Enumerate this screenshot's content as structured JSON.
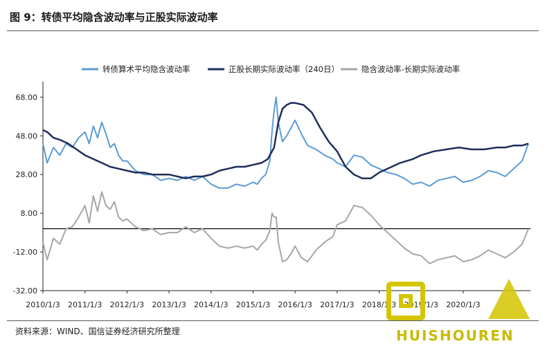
{
  "figure": {
    "title": "图 9：转债平均隐含波动率与正股实际波动率",
    "source": "资料来源：WIND、国信证券经济研究所整理"
  },
  "watermark": {
    "text": "HUISHOUREN"
  },
  "colors": {
    "implied": "#5b9bd5",
    "realized": "#1f2d5a",
    "spread": "#a6a6a6",
    "zero_line": "#000000",
    "axis": "#222222"
  },
  "chart_data": {
    "type": "line",
    "title": "",
    "xlabel": "",
    "ylabel": "",
    "ylim": [
      -32,
      76
    ],
    "y_ticks": [
      "68.00",
      "48.00",
      "28.00",
      "8.00",
      "-12.00",
      "-32.00"
    ],
    "y_tick_values": [
      68,
      48,
      28,
      8,
      -12,
      -32
    ],
    "x_ticks": [
      "2010/1/3",
      "2011/1/3",
      "2012/1/3",
      "2013/1/3",
      "2014/1/3",
      "2015/1/3",
      "2016/1/3",
      "2017/1/3",
      "2018/1/3",
      "2019/1/3",
      "2020/1/3"
    ],
    "x_tick_values": [
      2010,
      2011,
      2012,
      2013,
      2014,
      2015,
      2016,
      2017,
      2018,
      2019,
      2020
    ],
    "xlim": [
      2010,
      2021.6
    ],
    "legend_position": "top",
    "series": [
      {
        "name": "转债算术平均隐含波动率",
        "x": [
          2010,
          2010.1,
          2010.25,
          2010.4,
          2010.55,
          2010.7,
          2010.85,
          2011,
          2011.1,
          2011.2,
          2011.3,
          2011.4,
          2011.5,
          2011.6,
          2011.7,
          2011.8,
          2011.9,
          2012,
          2012.2,
          2012.4,
          2012.6,
          2012.8,
          2013,
          2013.2,
          2013.4,
          2013.6,
          2013.8,
          2014,
          2014.2,
          2014.4,
          2014.6,
          2014.8,
          2015,
          2015.1,
          2015.2,
          2015.3,
          2015.4,
          2015.45,
          2015.5,
          2015.55,
          2015.6,
          2015.7,
          2015.8,
          2015.9,
          2016,
          2016.15,
          2016.3,
          2016.5,
          2016.7,
          2016.9,
          2017,
          2017.2,
          2017.4,
          2017.6,
          2017.8,
          2018,
          2018.2,
          2018.4,
          2018.6,
          2018.8,
          2019,
          2019.2,
          2019.4,
          2019.6,
          2019.8,
          2020,
          2020.2,
          2020.4,
          2020.6,
          2020.8,
          2021,
          2021.2,
          2021.4,
          2021.55
        ],
        "values": [
          44,
          34,
          42,
          38,
          44,
          42,
          47,
          50,
          44,
          53,
          47,
          55,
          49,
          42,
          44,
          38,
          35,
          35,
          30,
          28,
          28,
          25,
          26,
          25,
          27,
          25,
          27,
          23,
          21,
          21,
          23,
          22,
          24,
          23,
          26,
          28,
          35,
          50,
          61,
          68,
          55,
          45,
          48,
          52,
          56,
          49,
          43,
          41,
          38,
          36,
          34,
          32,
          38,
          37,
          33,
          31,
          29,
          28,
          26,
          23,
          24,
          22,
          25,
          26,
          27,
          24,
          25,
          27,
          30,
          29,
          27,
          31,
          35,
          44
        ]
      },
      {
        "name": "正股长期实际波动率（240日）",
        "x": [
          2010,
          2010.1,
          2010.25,
          2010.4,
          2010.6,
          2010.8,
          2011,
          2011.2,
          2011.4,
          2011.6,
          2011.8,
          2012,
          2012.2,
          2012.4,
          2012.6,
          2012.8,
          2013,
          2013.2,
          2013.4,
          2013.6,
          2013.8,
          2014,
          2014.2,
          2014.4,
          2014.6,
          2014.8,
          2015,
          2015.2,
          2015.35,
          2015.5,
          2015.6,
          2015.7,
          2015.8,
          2015.9,
          2016,
          2016.2,
          2016.4,
          2016.6,
          2016.8,
          2017,
          2017.2,
          2017.4,
          2017.6,
          2017.8,
          2018,
          2018.2,
          2018.5,
          2018.8,
          2019,
          2019.3,
          2019.6,
          2019.9,
          2020.2,
          2020.5,
          2020.8,
          2021,
          2021.2,
          2021.4,
          2021.55
        ],
        "values": [
          51,
          50,
          47,
          46,
          44,
          41,
          38,
          36,
          34,
          32,
          31,
          30,
          29,
          29,
          28,
          28,
          28,
          27,
          26,
          27,
          27,
          28,
          30,
          31,
          32,
          32,
          33,
          34,
          36,
          42,
          55,
          62,
          64,
          65,
          65,
          64,
          60,
          52,
          45,
          40,
          32,
          28,
          26,
          26,
          29,
          31,
          34,
          36,
          38,
          40,
          41,
          42,
          41,
          41,
          42,
          42,
          43,
          43,
          44
        ]
      },
      {
        "name": "隐含波动率-长期实际波动率",
        "x": [
          2010,
          2010.1,
          2010.25,
          2010.4,
          2010.55,
          2010.7,
          2010.85,
          2011,
          2011.1,
          2011.2,
          2011.3,
          2011.4,
          2011.5,
          2011.6,
          2011.7,
          2011.8,
          2011.9,
          2012,
          2012.2,
          2012.4,
          2012.6,
          2012.8,
          2013,
          2013.2,
          2013.4,
          2013.6,
          2013.8,
          2014,
          2014.2,
          2014.4,
          2014.6,
          2014.8,
          2015,
          2015.1,
          2015.2,
          2015.3,
          2015.4,
          2015.45,
          2015.5,
          2015.55,
          2015.6,
          2015.7,
          2015.8,
          2015.9,
          2016,
          2016.15,
          2016.3,
          2016.5,
          2016.7,
          2016.9,
          2017,
          2017.2,
          2017.4,
          2017.6,
          2017.8,
          2018,
          2018.2,
          2018.4,
          2018.6,
          2018.8,
          2019,
          2019.2,
          2019.4,
          2019.6,
          2019.8,
          2020,
          2020.2,
          2020.4,
          2020.6,
          2020.8,
          2021,
          2021.2,
          2021.4,
          2021.55
        ],
        "values": [
          -7,
          -16,
          -5,
          -8,
          0,
          1,
          6,
          12,
          3,
          17,
          9,
          19,
          12,
          10,
          14,
          6,
          4,
          5,
          1,
          -1,
          0,
          -3,
          -2,
          -2,
          1,
          -2,
          0,
          -5,
          -9,
          -10,
          -9,
          -10,
          -9,
          -11,
          -8,
          -6,
          -1,
          8,
          6,
          6,
          -7,
          -17,
          -16,
          -13,
          -9,
          -15,
          -17,
          -11,
          -7,
          -4,
          2,
          4,
          12,
          11,
          7,
          2,
          -2,
          -6,
          -10,
          -13,
          -14,
          -18,
          -16,
          -15,
          -14,
          -17,
          -16,
          -14,
          -11,
          -13,
          -15,
          -12,
          -8,
          0
        ]
      }
    ]
  }
}
